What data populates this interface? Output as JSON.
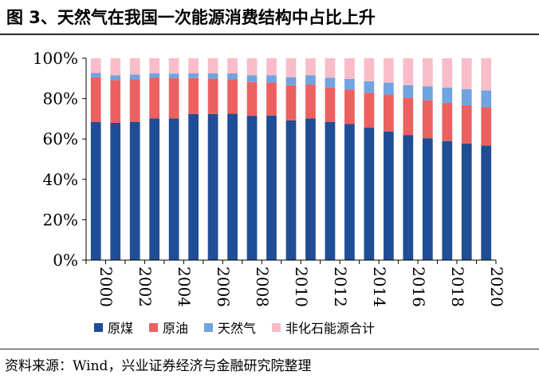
{
  "title": "图 3、天然气在我国一次能源消费结构中占比上升",
  "source": "资料来源：Wind，兴业证券经济与金融研究院整理",
  "chart_data": {
    "type": "bar",
    "stacked": true,
    "categories": [
      "2000",
      "2001",
      "2002",
      "2003",
      "2004",
      "2005",
      "2006",
      "2007",
      "2008",
      "2009",
      "2010",
      "2011",
      "2012",
      "2013",
      "2014",
      "2015",
      "2016",
      "2017",
      "2018",
      "2019",
      "2020"
    ],
    "x_tick_labels": [
      "2000",
      "",
      "2002",
      "",
      "2004",
      "",
      "2006",
      "",
      "2008",
      "",
      "2010",
      "",
      "2012",
      "",
      "2014",
      "",
      "2016",
      "",
      "2018",
      "",
      "2020"
    ],
    "y_ticks": [
      "0%",
      "20%",
      "40%",
      "60%",
      "80%",
      "100%"
    ],
    "ylim": [
      0,
      100
    ],
    "grid": false,
    "legend_position": "bottom",
    "series": [
      {
        "name": "原煤",
        "color": "#1f4e96",
        "values": [
          68.5,
          68.0,
          68.5,
          70.2,
          70.2,
          72.4,
          72.4,
          72.5,
          71.5,
          71.6,
          69.2,
          70.2,
          68.5,
          67.4,
          65.6,
          63.7,
          62.0,
          60.4,
          59.0,
          57.7,
          56.8
        ]
      },
      {
        "name": "原油",
        "color": "#ec6160",
        "values": [
          22.0,
          21.2,
          21.0,
          20.1,
          19.9,
          17.8,
          17.5,
          17.0,
          16.7,
          16.4,
          17.4,
          16.8,
          17.0,
          17.1,
          17.3,
          18.3,
          18.5,
          18.8,
          18.9,
          19.0,
          18.9
        ]
      },
      {
        "name": "天然气",
        "color": "#6fa4e0",
        "values": [
          2.2,
          2.4,
          2.4,
          2.3,
          2.3,
          2.4,
          2.7,
          3.0,
          3.4,
          3.5,
          4.0,
          4.6,
          4.8,
          5.3,
          5.7,
          5.9,
          6.2,
          6.9,
          7.6,
          8.0,
          8.4
        ]
      },
      {
        "name": "非化石能源合计",
        "color": "#f8bdc9",
        "values": [
          7.3,
          8.4,
          8.1,
          7.4,
          7.6,
          7.4,
          7.4,
          7.5,
          8.4,
          8.5,
          9.4,
          8.4,
          9.7,
          10.2,
          11.4,
          12.1,
          13.3,
          13.9,
          14.5,
          15.3,
          15.9
        ]
      }
    ]
  }
}
